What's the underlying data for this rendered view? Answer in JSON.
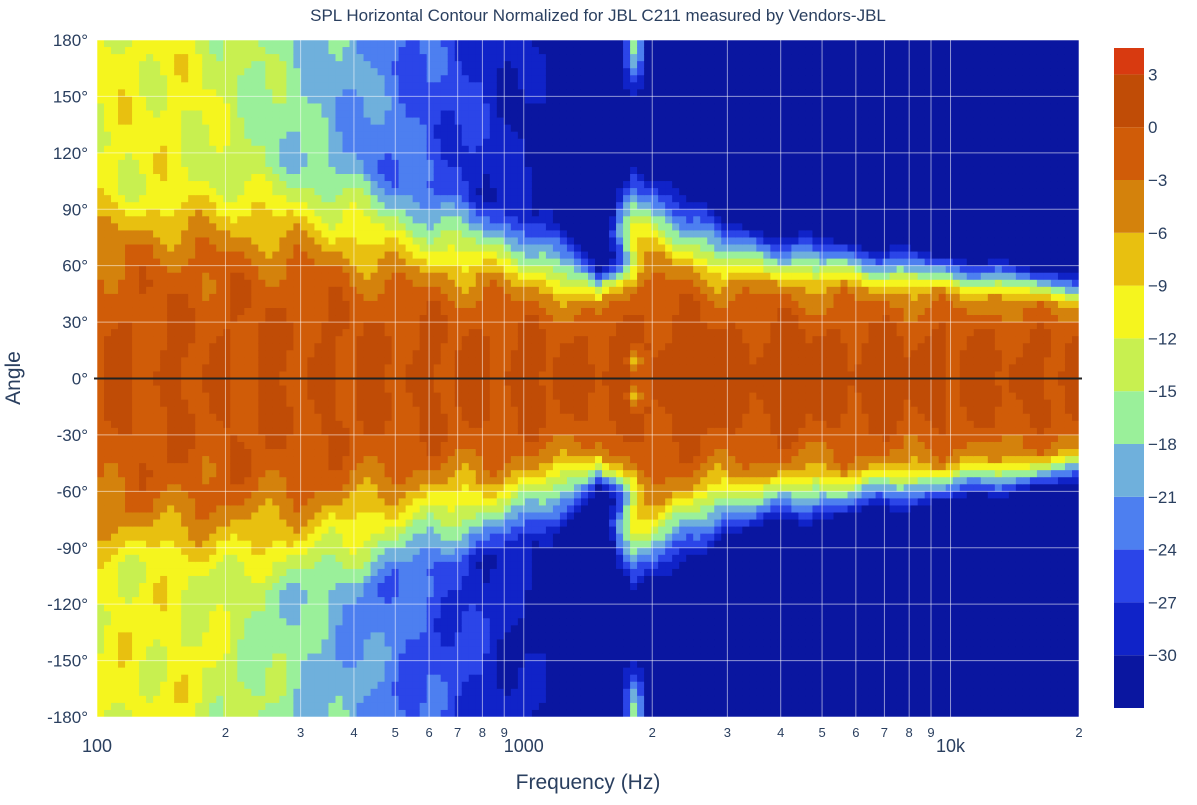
{
  "chart_data": {
    "type": "heatmap",
    "subtype": "filled-contour",
    "title": "SPL Horizontal Contour Normalized for JBL C211 measured by Vendors-JBL",
    "xlabel": "Frequency (Hz)",
    "ylabel": "Angle",
    "x_scale": "log",
    "xlim": [
      100,
      20000
    ],
    "ylim": [
      -180,
      180
    ],
    "x_tick_labels": [
      {
        "value": 100,
        "label": "100",
        "major": true
      },
      {
        "value": 200,
        "label": "2",
        "major": false
      },
      {
        "value": 300,
        "label": "3",
        "major": false
      },
      {
        "value": 400,
        "label": "4",
        "major": false
      },
      {
        "value": 500,
        "label": "5",
        "major": false
      },
      {
        "value": 600,
        "label": "6",
        "major": false
      },
      {
        "value": 700,
        "label": "7",
        "major": false
      },
      {
        "value": 800,
        "label": "8",
        "major": false
      },
      {
        "value": 900,
        "label": "9",
        "major": false
      },
      {
        "value": 1000,
        "label": "1000",
        "major": true
      },
      {
        "value": 2000,
        "label": "2",
        "major": false
      },
      {
        "value": 3000,
        "label": "3",
        "major": false
      },
      {
        "value": 4000,
        "label": "4",
        "major": false
      },
      {
        "value": 5000,
        "label": "5",
        "major": false
      },
      {
        "value": 6000,
        "label": "6",
        "major": false
      },
      {
        "value": 7000,
        "label": "7",
        "major": false
      },
      {
        "value": 8000,
        "label": "8",
        "major": false
      },
      {
        "value": 9000,
        "label": "9",
        "major": false
      },
      {
        "value": 10000,
        "label": "10k",
        "major": true
      },
      {
        "value": 20000,
        "label": "2",
        "major": false
      }
    ],
    "y_tick_labels": [
      {
        "value": 180,
        "label": "180°"
      },
      {
        "value": 150,
        "label": "150°"
      },
      {
        "value": 120,
        "label": "120°"
      },
      {
        "value": 90,
        "label": "90°"
      },
      {
        "value": 60,
        "label": "60°"
      },
      {
        "value": 30,
        "label": "30°"
      },
      {
        "value": 0,
        "label": "0°"
      },
      {
        "value": -30,
        "label": "-30°"
      },
      {
        "value": -60,
        "label": "-60°"
      },
      {
        "value": -90,
        "label": "-90°"
      },
      {
        "value": -120,
        "label": "-120°"
      },
      {
        "value": -150,
        "label": "-150°"
      },
      {
        "value": -180,
        "label": "-180°"
      }
    ],
    "contour_levels": [
      -33,
      -30,
      -27,
      -24,
      -21,
      -18,
      -15,
      -12,
      -9,
      -6,
      -3,
      0,
      3,
      6
    ],
    "level_colors": [
      "#0a16a0",
      "#1023c8",
      "#2b45e8",
      "#4d7ff0",
      "#6fb0dc",
      "#9af09a",
      "#c8f050",
      "#f5f51e",
      "#e8c010",
      "#d4820c",
      "#d05c08",
      "#c04c06",
      "#d83a10"
    ],
    "colorbar_ticks": [
      {
        "value": 3,
        "label": "3"
      },
      {
        "value": 0,
        "label": "0"
      },
      {
        "value": -3,
        "label": "−3"
      },
      {
        "value": -6,
        "label": "−6"
      },
      {
        "value": -9,
        "label": "−9"
      },
      {
        "value": -12,
        "label": "−12"
      },
      {
        "value": -15,
        "label": "−15"
      },
      {
        "value": -18,
        "label": "−18"
      },
      {
        "value": -21,
        "label": "−21"
      },
      {
        "value": -24,
        "label": "−24"
      },
      {
        "value": -27,
        "label": "−27"
      },
      {
        "value": -30,
        "label": "−30"
      }
    ],
    "description_data": {
      "beamwidth_at_minus6dB_deg": [
        {
          "freq": 100,
          "half_angle": 78
        },
        {
          "freq": 200,
          "half_angle": 80
        },
        {
          "freq": 300,
          "half_angle": 72
        },
        {
          "freq": 500,
          "half_angle": 60
        },
        {
          "freq": 1000,
          "half_angle": 50
        },
        {
          "freq": 1500,
          "half_angle": 38
        },
        {
          "freq": 1800,
          "half_angle": 70
        },
        {
          "freq": 3000,
          "half_angle": 52
        },
        {
          "freq": 10000,
          "half_angle": 45
        },
        {
          "freq": 20000,
          "half_angle": 40
        }
      ]
    },
    "grid": true,
    "legend": "colorbar-right"
  }
}
